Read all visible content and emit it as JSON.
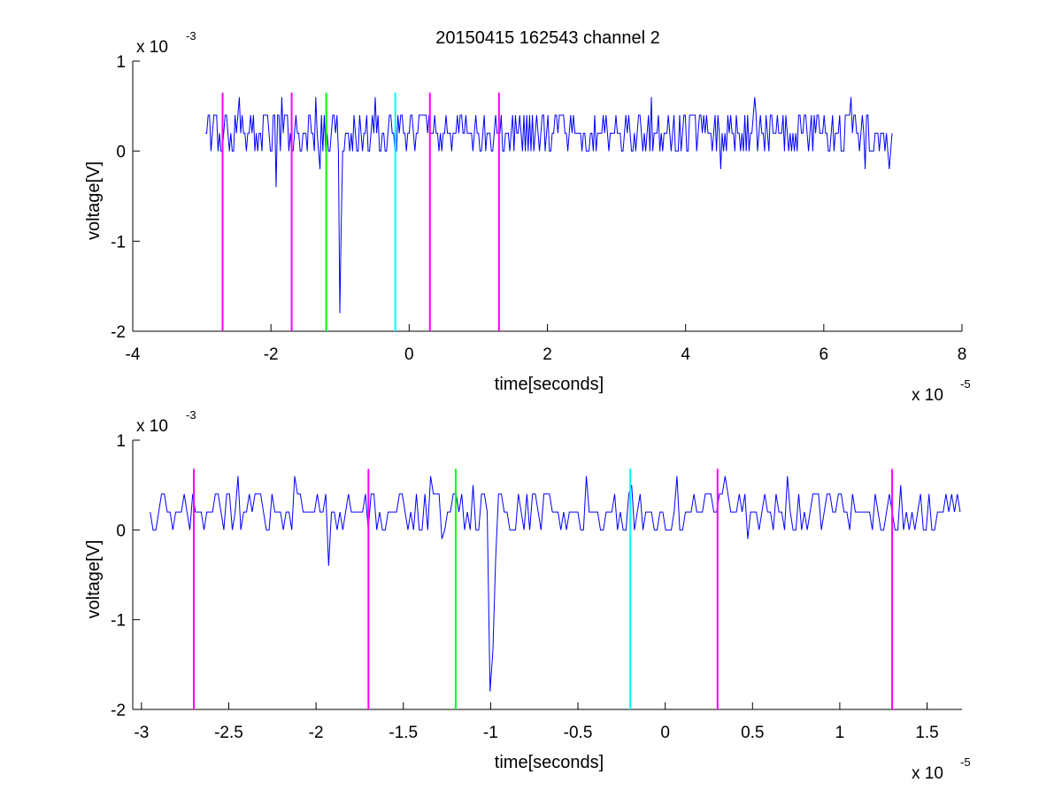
{
  "figure_title": "20150415 162543 channel 2",
  "colors": {
    "signal": "#0000ff",
    "marker_magenta": "#ff00ff",
    "marker_green": "#00ff00",
    "marker_cyan": "#00ffff",
    "axes": "#000000"
  },
  "chart_data": [
    {
      "type": "line",
      "title": "20150415 162543 channel 2",
      "xlabel": "time[seconds]",
      "ylabel": "voltage[V]",
      "x_multiplier_label": "x 10",
      "x_multiplier_exp": "-5",
      "y_multiplier_label": "x 10",
      "y_multiplier_exp": "-3",
      "xlim": [
        -4,
        8
      ],
      "ylim": [
        -2,
        1
      ],
      "xticks": [
        -4,
        -2,
        0,
        2,
        4,
        6,
        8
      ],
      "xtick_labels": [
        "-4",
        "-2",
        "0",
        "2",
        "4",
        "6",
        "8"
      ],
      "yticks": [
        -2,
        -1,
        0,
        1
      ],
      "ytick_labels": [
        "-2",
        "-1",
        "0",
        "1"
      ],
      "grid": false,
      "series": [
        {
          "style": "noisy-trace",
          "x_range": [
            -2.95,
            7.0
          ],
          "baseline": 0.2,
          "levels": [
            0,
            0.2,
            0.4
          ],
          "spikes": [
            {
              "x": -1.93,
              "y": -0.4
            },
            {
              "x": -1.3,
              "y": -0.2
            },
            {
              "x": -1.0,
              "y": -1.8
            },
            {
              "x": -0.98,
              "y": -0.8
            },
            {
              "x": -2.45,
              "y": 0.6
            },
            {
              "x": -1.85,
              "y": 0.6
            },
            {
              "x": -1.35,
              "y": 0.6
            },
            {
              "x": -0.5,
              "y": 0.6
            },
            {
              "x": 3.5,
              "y": 0.6
            },
            {
              "x": 5.0,
              "y": 0.6
            },
            {
              "x": 6.4,
              "y": 0.6
            },
            {
              "x": 4.5,
              "y": -0.2
            },
            {
              "x": 6.6,
              "y": -0.2
            },
            {
              "x": 6.95,
              "y": -0.2
            }
          ]
        }
      ],
      "markers": [
        {
          "x": -2.7,
          "color": "magenta",
          "y_top": 0.65
        },
        {
          "x": -1.7,
          "color": "magenta",
          "y_top": 0.65
        },
        {
          "x": -1.2,
          "color": "green",
          "y_top": 0.65
        },
        {
          "x": -0.2,
          "color": "cyan",
          "y_top": 0.65
        },
        {
          "x": 0.3,
          "color": "magenta",
          "y_top": 0.65
        },
        {
          "x": 1.3,
          "color": "magenta",
          "y_top": 0.65
        }
      ]
    },
    {
      "type": "line",
      "title": "",
      "xlabel": "time[seconds]",
      "ylabel": "voltage[V]",
      "x_multiplier_label": "x 10",
      "x_multiplier_exp": "-5",
      "y_multiplier_label": "x 10",
      "y_multiplier_exp": "-3",
      "xlim": [
        -3.05,
        1.7
      ],
      "ylim": [
        -2,
        1
      ],
      "xticks": [
        -3,
        -2.5,
        -2,
        -1.5,
        -1,
        -0.5,
        0,
        0.5,
        1,
        1.5
      ],
      "xtick_labels": [
        "-3",
        "-2.5",
        "-2",
        "-1.5",
        "-1",
        "-0.5",
        "0",
        "0.5",
        "1",
        "1.5"
      ],
      "yticks": [
        -2,
        -1,
        0,
        1
      ],
      "ytick_labels": [
        "-2",
        "-1",
        "0",
        "1"
      ],
      "grid": false,
      "series": [
        {
          "style": "noisy-trace",
          "x_range": [
            -2.95,
            1.7
          ],
          "baseline": 0.2,
          "levels": [
            0,
            0.2,
            0.4
          ],
          "spikes": [
            {
              "x": -2.45,
              "y": 0.6
            },
            {
              "x": -2.13,
              "y": -0.1
            },
            {
              "x": -2.12,
              "y": 0.6
            },
            {
              "x": -1.93,
              "y": -0.4
            },
            {
              "x": -1.69,
              "y": 0.4
            },
            {
              "x": -1.34,
              "y": 0.6
            },
            {
              "x": -1.28,
              "y": -0.1
            },
            {
              "x": -1.1,
              "y": 0.5
            },
            {
              "x": -1.0,
              "y": -1.8
            },
            {
              "x": -0.99,
              "y": -1.35
            },
            {
              "x": -0.97,
              "y": -0.3
            },
            {
              "x": -0.45,
              "y": 0.6
            },
            {
              "x": -0.2,
              "y": 0.5
            },
            {
              "x": 0.07,
              "y": 0.6
            },
            {
              "x": 0.35,
              "y": 0.6
            },
            {
              "x": 0.47,
              "y": -0.1
            },
            {
              "x": 0.7,
              "y": 0.6
            },
            {
              "x": 1.35,
              "y": 0.5
            }
          ]
        }
      ],
      "markers": [
        {
          "x": -2.7,
          "color": "magenta",
          "y_top": 0.68
        },
        {
          "x": -1.7,
          "color": "magenta",
          "y_top": 0.68
        },
        {
          "x": -1.2,
          "color": "green",
          "y_top": 0.68
        },
        {
          "x": -0.2,
          "color": "cyan",
          "y_top": 0.68
        },
        {
          "x": 0.3,
          "color": "magenta",
          "y_top": 0.68
        },
        {
          "x": 1.3,
          "color": "magenta",
          "y_top": 0.68
        }
      ]
    }
  ]
}
